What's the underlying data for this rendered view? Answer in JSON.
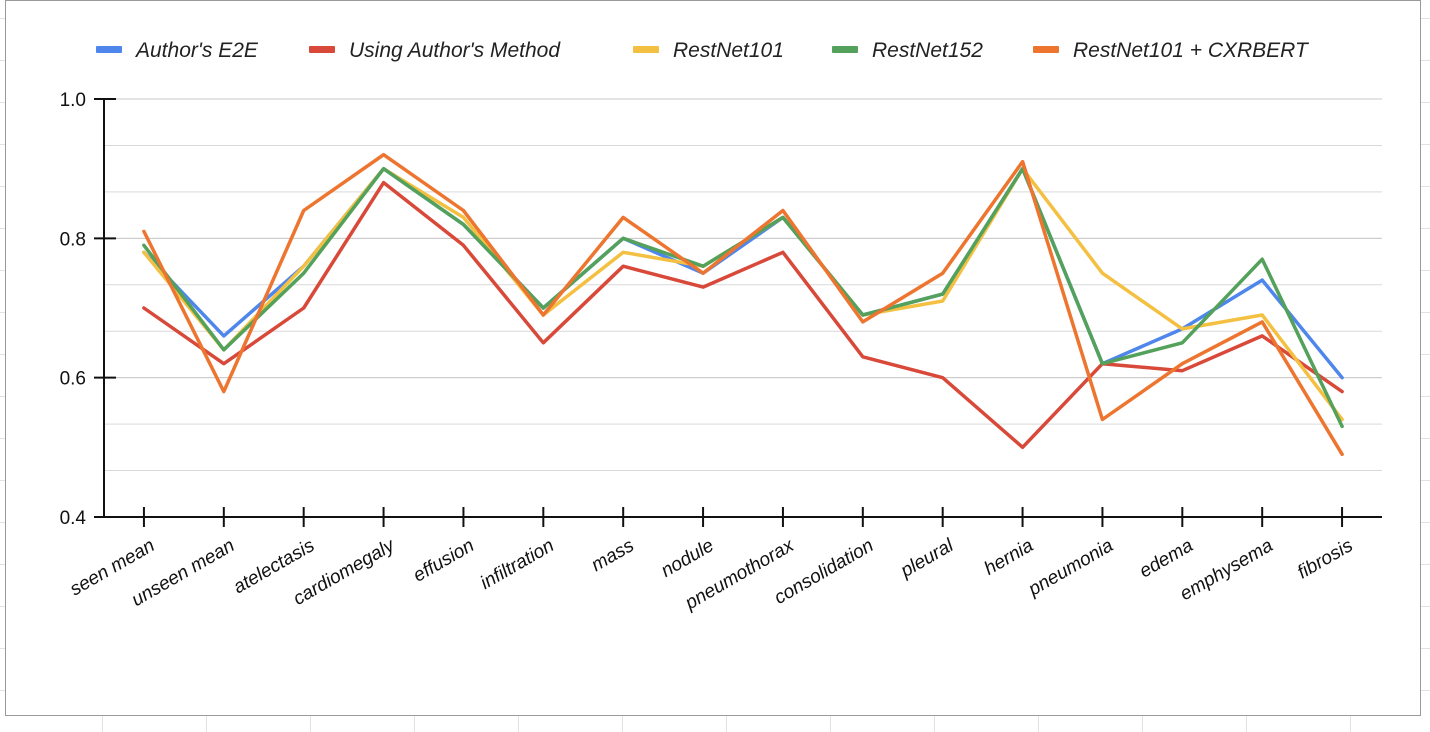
{
  "chart_data": {
    "type": "line",
    "title": "",
    "xlabel": "",
    "ylabel": "",
    "ylim": [
      0.4,
      1.0
    ],
    "yticks": [
      "0.4",
      "0.6",
      "0.8",
      "1.0"
    ],
    "grid": true,
    "legend_position": "top",
    "categories": [
      "seen mean",
      "unseen mean",
      "atelectasis",
      "cardiomegaly",
      "effusion",
      "infiltration",
      "mass",
      "nodule",
      "pneumothorax",
      "consolidation",
      "pleural",
      "hernia",
      "pneumonia",
      "edema",
      "emphysema",
      "fibrosis"
    ],
    "series": [
      {
        "name": "Author's E2E",
        "color": "#4e86ec",
        "values": [
          0.78,
          0.66,
          0.76,
          0.9,
          0.82,
          0.7,
          0.8,
          0.75,
          0.83,
          0.69,
          0.72,
          0.9,
          0.62,
          0.67,
          0.74,
          0.6
        ]
      },
      {
        "name": "Using Author's Method",
        "color": "#d8493a",
        "values": [
          0.7,
          0.62,
          0.7,
          0.88,
          0.79,
          0.65,
          0.76,
          0.73,
          0.78,
          0.63,
          0.6,
          0.5,
          0.62,
          0.61,
          0.66,
          0.58
        ]
      },
      {
        "name": "RestNet101",
        "color": "#f4c042",
        "values": [
          0.78,
          0.64,
          0.76,
          0.9,
          0.83,
          0.69,
          0.78,
          0.76,
          0.83,
          0.69,
          0.71,
          0.9,
          0.75,
          0.67,
          0.69,
          0.54
        ]
      },
      {
        "name": "RestNet152",
        "color": "#53a15a",
        "values": [
          0.79,
          0.64,
          0.75,
          0.9,
          0.82,
          0.7,
          0.8,
          0.76,
          0.83,
          0.69,
          0.72,
          0.9,
          0.62,
          0.65,
          0.77,
          0.53
        ]
      },
      {
        "name": "RestNet101 + CXRBERT",
        "color": "#ed7530",
        "values": [
          0.81,
          0.58,
          0.84,
          0.92,
          0.84,
          0.69,
          0.83,
          0.75,
          0.84,
          0.68,
          0.75,
          0.91,
          0.54,
          0.62,
          0.68,
          0.49
        ]
      }
    ]
  }
}
